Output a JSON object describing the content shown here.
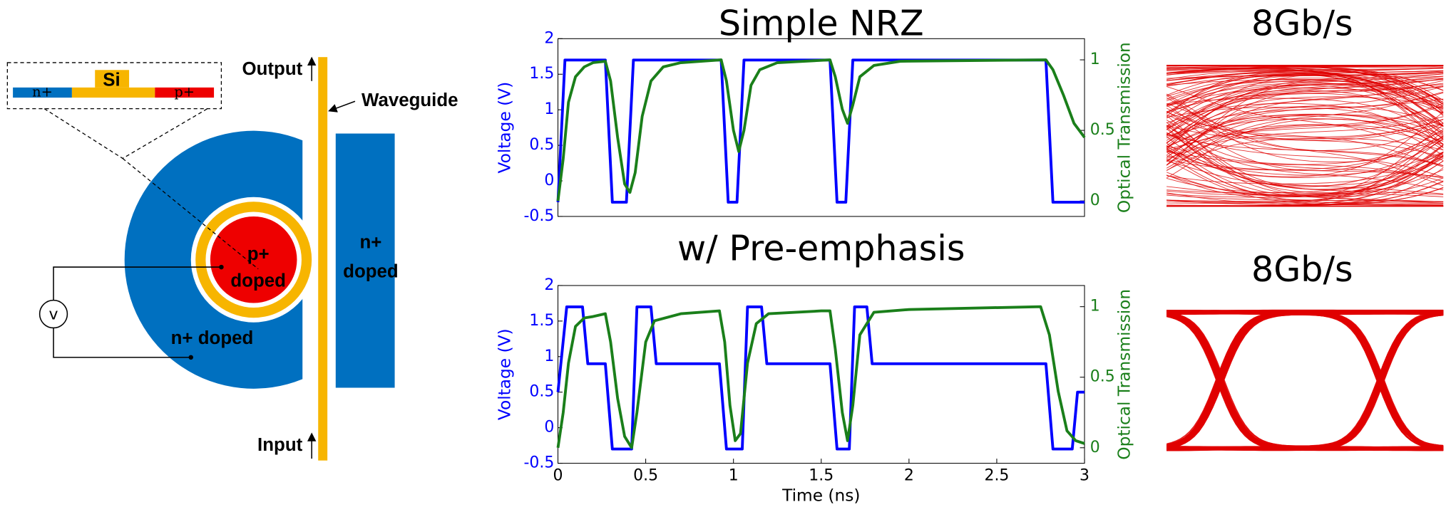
{
  "diagram": {
    "inset": {
      "n_region": "n+",
      "si": "Si",
      "p_region": "p+"
    },
    "output": "Output",
    "input": "Input",
    "waveguide": "Waveguide",
    "ring_label": [
      "p+",
      "doped"
    ],
    "slab_label": [
      "n+",
      "doped"
    ],
    "outer_label": "n+ doped",
    "source": "v"
  },
  "chart_data": [
    {
      "type": "line",
      "title": "Simple NRZ",
      "y_label": "Voltage (V)",
      "y2_label": "Optical Transmission",
      "xlim": [
        0,
        3
      ],
      "ylim": [
        -0.5,
        2
      ],
      "yticks": [
        -0.5,
        0,
        0.5,
        1,
        1.5,
        2
      ],
      "y2lim": [
        -0.11,
        1.15
      ],
      "y2ticks": [
        0,
        0.5,
        1
      ],
      "series": [
        {
          "color": "#0000ff",
          "x": [
            0,
            0.04,
            0.27,
            0.31,
            0.39,
            0.43,
            0.93,
            0.97,
            1.02,
            1.06,
            1.55,
            1.59,
            1.64,
            1.68,
            2.78,
            2.82,
            3.0
          ],
          "values": [
            -0.3,
            1.7,
            1.7,
            -0.3,
            -0.3,
            1.7,
            1.7,
            -0.3,
            -0.3,
            1.7,
            1.7,
            -0.3,
            -0.3,
            1.7,
            1.7,
            -0.3,
            -0.3
          ]
        },
        {
          "color": "#1a7f1a",
          "axis": "y2",
          "x": [
            0,
            0.03,
            0.06,
            0.1,
            0.15,
            0.2,
            0.27,
            0.3,
            0.34,
            0.38,
            0.41,
            0.44,
            0.48,
            0.53,
            0.6,
            0.7,
            0.93,
            0.96,
            1.0,
            1.03,
            1.06,
            1.1,
            1.15,
            1.25,
            1.55,
            1.58,
            1.62,
            1.65,
            1.68,
            1.72,
            1.8,
            1.95,
            2.78,
            2.82,
            2.88,
            2.94,
            3.0
          ],
          "values": [
            0.0,
            0.3,
            0.7,
            0.88,
            0.95,
            0.98,
            0.99,
            0.85,
            0.45,
            0.12,
            0.06,
            0.2,
            0.6,
            0.85,
            0.95,
            0.98,
            1.0,
            0.85,
            0.5,
            0.35,
            0.5,
            0.82,
            0.93,
            0.98,
            1.0,
            0.88,
            0.65,
            0.55,
            0.68,
            0.88,
            0.96,
            0.99,
            1.0,
            0.93,
            0.75,
            0.55,
            0.45
          ]
        }
      ]
    },
    {
      "type": "line",
      "title": "w/ Pre-emphasis",
      "x_label": "Time (ns)",
      "y_label": "Voltage (V)",
      "y2_label": "Optical Transmission",
      "xlim": [
        0,
        3
      ],
      "xticks": [
        0,
        0.5,
        1,
        1.5,
        2,
        2.5,
        3
      ],
      "ylim": [
        -0.5,
        2
      ],
      "yticks": [
        -0.5,
        0,
        0.5,
        1,
        1.5,
        2
      ],
      "y2lim": [
        -0.11,
        1.15
      ],
      "y2ticks": [
        0,
        0.5,
        1
      ],
      "series": [
        {
          "color": "#0000ff",
          "x": [
            0,
            0.05,
            0.14,
            0.17,
            0.27,
            0.31,
            0.42,
            0.45,
            0.53,
            0.56,
            0.92,
            0.96,
            1.05,
            1.08,
            1.16,
            1.19,
            1.55,
            1.59,
            1.66,
            1.69,
            1.76,
            1.79,
            2.78,
            2.82,
            2.93,
            2.96,
            3.0
          ],
          "values": [
            0.5,
            1.7,
            1.7,
            0.9,
            0.9,
            -0.3,
            -0.3,
            1.7,
            1.7,
            0.9,
            0.9,
            -0.3,
            -0.3,
            1.7,
            1.7,
            0.9,
            0.9,
            -0.3,
            -0.3,
            1.7,
            1.7,
            0.9,
            0.9,
            -0.3,
            -0.3,
            0.5,
            0.5
          ]
        },
        {
          "color": "#1a7f1a",
          "axis": "y2",
          "x": [
            0,
            0.03,
            0.06,
            0.1,
            0.15,
            0.2,
            0.27,
            0.3,
            0.34,
            0.38,
            0.42,
            0.45,
            0.5,
            0.55,
            0.7,
            0.92,
            0.95,
            0.98,
            1.01,
            1.04,
            1.08,
            1.13,
            1.2,
            1.5,
            1.55,
            1.58,
            1.62,
            1.65,
            1.68,
            1.72,
            1.8,
            2.0,
            2.75,
            2.8,
            2.85,
            2.9,
            2.95,
            3.0
          ],
          "values": [
            0.0,
            0.25,
            0.6,
            0.86,
            0.92,
            0.93,
            0.95,
            0.75,
            0.35,
            0.08,
            0.0,
            0.25,
            0.75,
            0.9,
            0.95,
            0.97,
            0.75,
            0.3,
            0.05,
            0.1,
            0.6,
            0.88,
            0.95,
            0.97,
            0.97,
            0.7,
            0.25,
            0.05,
            0.3,
            0.8,
            0.96,
            0.98,
            1.0,
            0.8,
            0.4,
            0.12,
            0.05,
            0.03
          ]
        }
      ]
    }
  ],
  "eye_diagrams": [
    {
      "title": "8Gb/s"
    },
    {
      "title": "8Gb/s"
    }
  ]
}
